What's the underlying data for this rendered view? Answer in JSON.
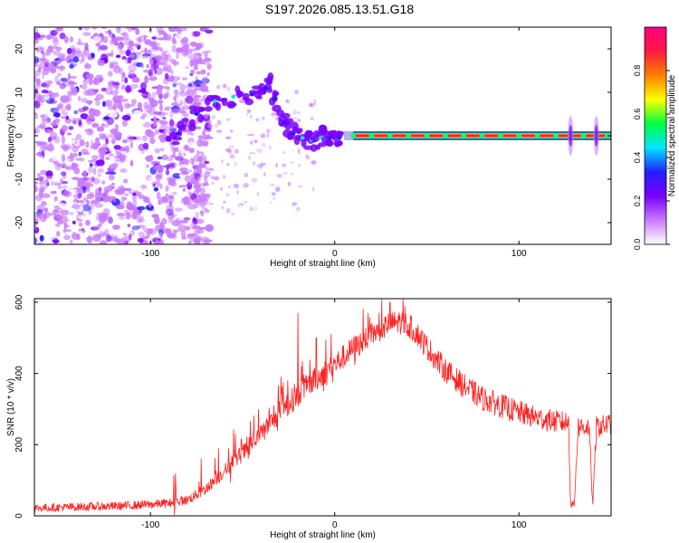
{
  "title": "S197.2026.085.13.51.G18",
  "chart_data": [
    {
      "type": "heatmap",
      "xlabel": "Height of straight line (km)",
      "ylabel": "Frequency (Hz)",
      "xlim": [
        -163,
        150
      ],
      "ylim": [
        -25,
        25
      ],
      "x_ticks": [
        -100,
        0,
        100
      ],
      "y_ticks": [
        -20,
        -10,
        0,
        10,
        20
      ],
      "colorbar": {
        "label": "Normalized spectral amplitude",
        "range": [
          0,
          1
        ],
        "ticks": [
          0.0,
          0.2,
          0.4,
          0.6,
          0.8
        ],
        "colors": [
          "#ffffff",
          "#c97bff",
          "#7a00ff",
          "#2020ff",
          "#00e5ff",
          "#00ff40",
          "#ffff00",
          "#ff8000",
          "#ff1a40",
          "#ff0080"
        ]
      },
      "features": {
        "noise_region_x": [
          -163,
          -80
        ],
        "drift_points": [
          {
            "x": -90,
            "y": -2
          },
          {
            "x": -80,
            "y": 3
          },
          {
            "x": -70,
            "y": 7
          },
          {
            "x": -60,
            "y": 9
          },
          {
            "x": -50,
            "y": 9
          },
          {
            "x": -40,
            "y": 10
          },
          {
            "x": -35,
            "y": 12
          },
          {
            "x": -30,
            "y": 5
          },
          {
            "x": -25,
            "y": 1
          },
          {
            "x": -20,
            "y": 0
          },
          {
            "x": -15,
            "y": -1
          },
          {
            "x": -10,
            "y": -1
          },
          {
            "x": -5,
            "y": 0
          },
          {
            "x": 0,
            "y": -1
          },
          {
            "x": 5,
            "y": 0
          }
        ],
        "carrier_frequency": 0,
        "carrier_x": [
          10,
          150
        ],
        "carrier_markers_x": [
          10,
          20,
          30,
          40,
          50,
          60,
          70,
          80,
          90,
          100,
          110,
          120,
          128,
          135,
          142,
          148
        ]
      }
    },
    {
      "type": "line",
      "xlabel": "Height of straight line (km)",
      "ylabel": "SNR (10 * v/v)",
      "xlim": [
        -163,
        150
      ],
      "ylim": [
        0,
        610
      ],
      "x_ticks": [
        -100,
        0,
        100
      ],
      "y_ticks": [
        0,
        200,
        400,
        600
      ],
      "series": [
        {
          "color": "#ff2020",
          "x": [
            -163,
            -140,
            -120,
            -100,
            -90,
            -80,
            -75,
            -70,
            -65,
            -60,
            -55,
            -50,
            -45,
            -40,
            -35,
            -30,
            -25,
            -20,
            -15,
            -10,
            -5,
            0,
            10,
            20,
            25,
            30,
            35,
            40,
            45,
            50,
            55,
            60,
            70,
            80,
            90,
            100,
            110,
            120,
            127,
            128,
            130,
            132,
            135,
            138,
            140,
            142,
            145,
            150
          ],
          "y": [
            22,
            25,
            27,
            32,
            36,
            45,
            60,
            75,
            100,
            125,
            150,
            175,
            205,
            230,
            260,
            290,
            315,
            340,
            365,
            385,
            405,
            425,
            470,
            510,
            525,
            540,
            545,
            535,
            510,
            475,
            440,
            410,
            365,
            330,
            310,
            290,
            275,
            265,
            262,
            35,
            30,
            250,
            250,
            250,
            30,
            250,
            252,
            260
          ],
          "spikes": [
            {
              "x": -63,
              "y": 190
            },
            {
              "x": -47,
              "y": 160
            },
            {
              "x": -40,
              "y": 245
            },
            {
              "x": -33,
              "y": 310
            },
            {
              "x": -28,
              "y": 375
            },
            {
              "x": -20,
              "y": 570
            },
            {
              "x": -18,
              "y": 420
            },
            {
              "x": -10,
              "y": 500
            },
            {
              "x": -2,
              "y": 510
            },
            {
              "x": 18,
              "y": 570
            },
            {
              "x": 30,
              "y": 600
            },
            {
              "x": 38,
              "y": 590
            }
          ],
          "noise": 25
        }
      ]
    }
  ]
}
